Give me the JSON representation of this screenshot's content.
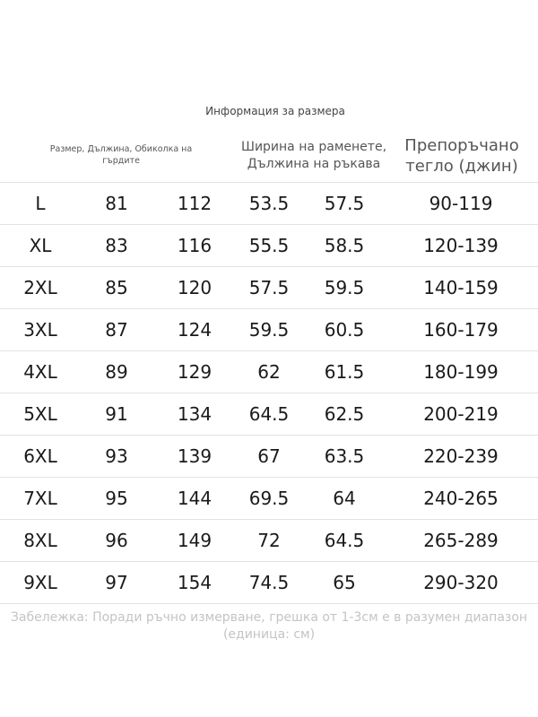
{
  "title": "Информация за размера",
  "headers": {
    "size_length_chest": "Размер, Дължина, Обиколка на гърдите",
    "shoulder_sleeve": "Ширина на раменете, Дължина на ръкава",
    "weight": "Препоръчано тегло (джин)"
  },
  "rows": [
    [
      "L",
      "81",
      "112",
      "53.5",
      "57.5",
      "90-119"
    ],
    [
      "XL",
      "83",
      "116",
      "55.5",
      "58.5",
      "120-139"
    ],
    [
      "2XL",
      "85",
      "120",
      "57.5",
      "59.5",
      "140-159"
    ],
    [
      "3XL",
      "87",
      "124",
      "59.5",
      "60.5",
      "160-179"
    ],
    [
      "4XL",
      "89",
      "129",
      "62",
      "61.5",
      "180-199"
    ],
    [
      "5XL",
      "91",
      "134",
      "64.5",
      "62.5",
      "200-219"
    ],
    [
      "6XL",
      "93",
      "139",
      "67",
      "63.5",
      "220-239"
    ],
    [
      "7XL",
      "95",
      "144",
      "69.5",
      "64",
      "240-265"
    ],
    [
      "8XL",
      "96",
      "149",
      "72",
      "64.5",
      "265-289"
    ],
    [
      "9XL",
      "97",
      "154",
      "74.5",
      "65",
      "290-320"
    ]
  ],
  "note": "Забележка: Поради ръчно измерване, грешка от 1-3см е в разумен диапазон (единица: см)"
}
